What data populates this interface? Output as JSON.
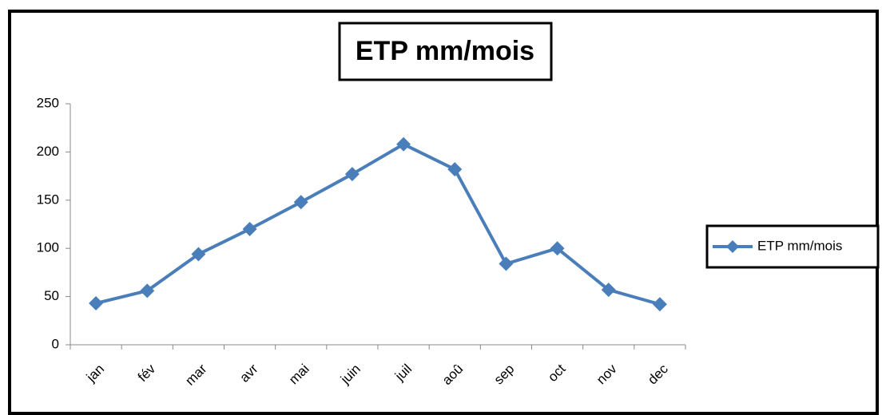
{
  "chart_data": {
    "type": "line",
    "title": "ETP mm/mois",
    "categories": [
      "jan",
      "fév",
      "mar",
      "avr",
      "mai",
      "juin",
      "juil",
      "aoû",
      "sep",
      "oct",
      "nov",
      "dec"
    ],
    "series": [
      {
        "name": "ETP mm/mois",
        "color": "#4a7ebb",
        "values": [
          43,
          56,
          94,
          120,
          148,
          177,
          208,
          182,
          84,
          100,
          57,
          42
        ]
      }
    ],
    "ylim": [
      0,
      250
    ],
    "yticks": [
      0,
      50,
      100,
      150,
      200,
      250
    ],
    "grid": false,
    "legend": "right"
  }
}
